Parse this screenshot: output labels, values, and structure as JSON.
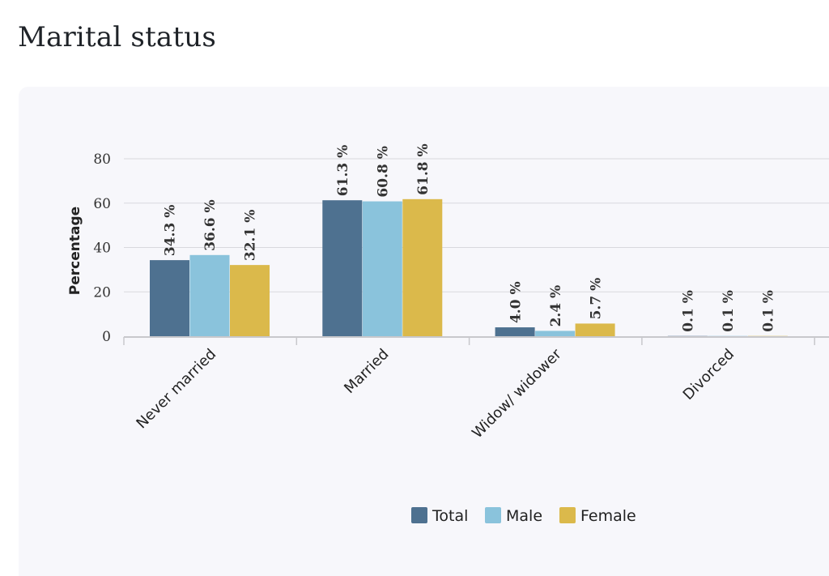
{
  "page": {
    "title": "Marital status"
  },
  "chart_data": {
    "type": "bar",
    "title": "",
    "xlabel": "",
    "ylabel": "Percentage",
    "ylim": [
      0,
      80
    ],
    "yticks": [
      0,
      20,
      40,
      60,
      80
    ],
    "grid": true,
    "legend_position": "bottom",
    "categories": [
      "Never married",
      "Married",
      "Widow/ widower",
      "Divorced"
    ],
    "series": [
      {
        "name": "Total",
        "color": "#4e7190",
        "values": [
          34.3,
          61.3,
          4.0,
          0.1
        ],
        "labels": [
          "34.3 %",
          "61.3 %",
          "4.0 %",
          "0.1 %"
        ]
      },
      {
        "name": "Male",
        "color": "#8ac3dc",
        "values": [
          36.6,
          60.8,
          2.4,
          0.1
        ],
        "labels": [
          "36.6 %",
          "60.8 %",
          "2.4 %",
          "0.1 %"
        ]
      },
      {
        "name": "Female",
        "color": "#dbb94b",
        "values": [
          32.1,
          61.8,
          5.7,
          0.1
        ],
        "labels": [
          "32.1 %",
          "61.8 %",
          "5.7 %",
          "0.1 %"
        ]
      }
    ]
  }
}
